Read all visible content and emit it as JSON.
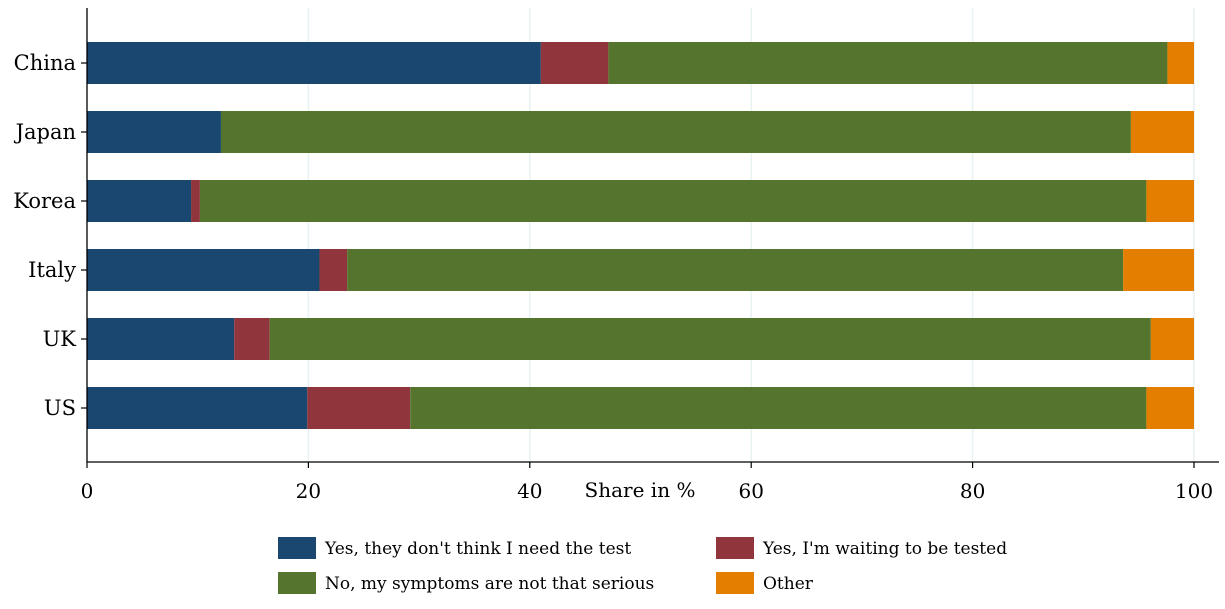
{
  "chart_data": {
    "type": "bar",
    "orientation": "horizontal",
    "stacked": true,
    "title": "",
    "xlabel": "Share in %",
    "ylabel": "",
    "xlim": [
      0,
      100
    ],
    "xticks": [
      0,
      20,
      40,
      60,
      80,
      100
    ],
    "grid": "vertical",
    "legend_position": "bottom",
    "categories": [
      "China",
      "Japan",
      "Korea",
      "Italy",
      "UK",
      "US"
    ],
    "series": [
      {
        "name": "Yes, they don't think I need the test",
        "color": "#1a476f",
        "values": [
          41.0,
          12.1,
          9.4,
          21.0,
          13.3,
          19.9
        ]
      },
      {
        "name": "Yes, I'm waiting to be tested",
        "color": "#90353b",
        "values": [
          6.1,
          0.0,
          0.8,
          2.5,
          3.2,
          9.3
        ]
      },
      {
        "name": "No, my symptoms are not that serious",
        "color": "#55752f",
        "values": [
          50.5,
          82.2,
          85.5,
          70.1,
          79.6,
          66.5
        ]
      },
      {
        "name": "Other",
        "color": "#e37e00",
        "values": [
          2.4,
          5.7,
          4.3,
          6.4,
          3.9,
          4.3
        ]
      }
    ]
  }
}
